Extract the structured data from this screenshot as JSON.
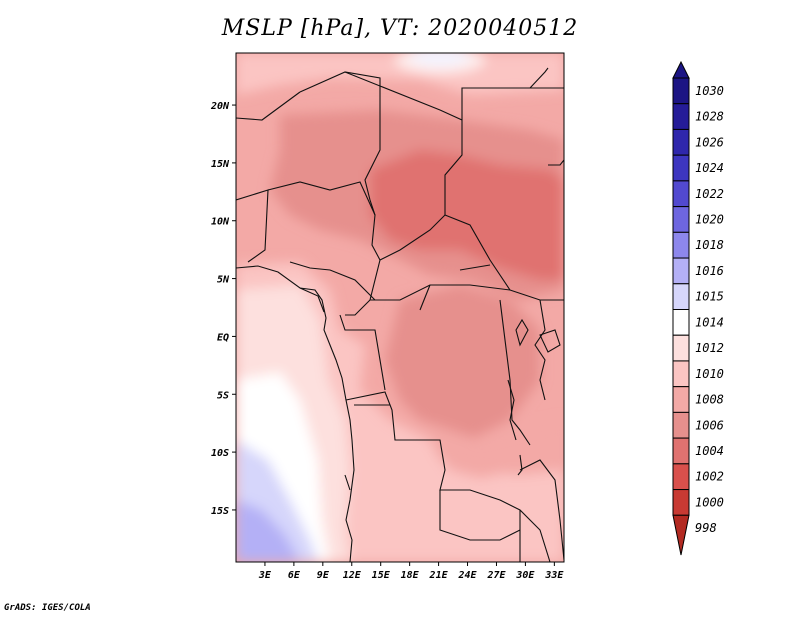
{
  "title": "MSLP [hPa], VT: 2020040512",
  "credit": "GrADS: IGES/COLA",
  "map": {
    "variable": "MSLP",
    "units": "hPa",
    "valid_time": "2020040512",
    "lat_labels": [
      "20N",
      "15N",
      "10N",
      "5N",
      "EQ",
      "5S",
      "10S",
      "15S"
    ],
    "lon_labels": [
      "3E",
      "6E",
      "9E",
      "12E",
      "15E",
      "18E",
      "21E",
      "24E",
      "27E",
      "30E",
      "33E"
    ],
    "lat_range": [
      -19.5,
      24.5
    ],
    "lon_range": [
      0,
      34
    ]
  },
  "colorbar": {
    "levels": [
      {
        "label": "1030",
        "color": "#1c1584"
      },
      {
        "label": "1028",
        "color": "#251c98"
      },
      {
        "label": "1026",
        "color": "#2f27ac"
      },
      {
        "label": "1024",
        "color": "#3d36c0"
      },
      {
        "label": "1022",
        "color": "#5249d0"
      },
      {
        "label": "1020",
        "color": "#6e66e0"
      },
      {
        "label": "1018",
        "color": "#8d87ec"
      },
      {
        "label": "1016",
        "color": "#b4b0f6"
      },
      {
        "label": "1015",
        "color": "#d6d6fb"
      },
      {
        "label": "1014",
        "color": "#ffffff"
      },
      {
        "label": "1012",
        "color": "#fde0de"
      },
      {
        "label": "1010",
        "color": "#fbc5c3"
      },
      {
        "label": "1008",
        "color": "#f3a9a6"
      },
      {
        "label": "1006",
        "color": "#e6908d"
      },
      {
        "label": "1004",
        "color": "#e07270"
      },
      {
        "label": "1002",
        "color": "#d9504c"
      },
      {
        "label": "1000",
        "color": "#c83a33"
      },
      {
        "label": "998",
        "color": "#b32a22"
      }
    ]
  }
}
